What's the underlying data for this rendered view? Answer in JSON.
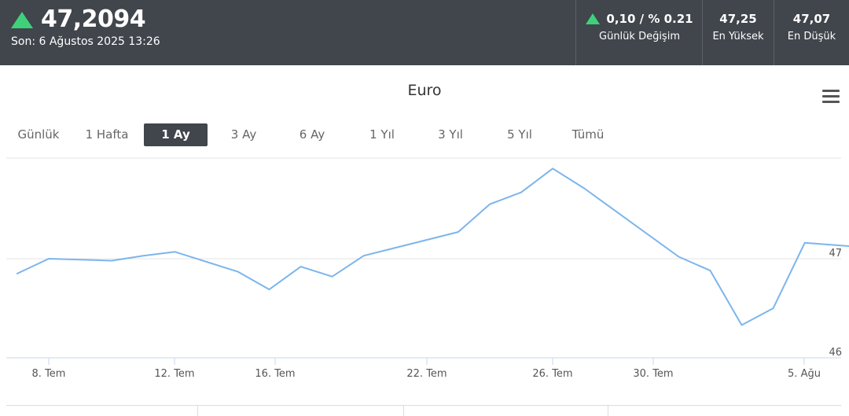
{
  "header": {
    "price": "47,2094",
    "last_update": "Son: 6 Ağustos 2025 13:26",
    "change_value": "0,10 / % 0.21",
    "change_label": "Günlük Değişim",
    "high_value": "47,25",
    "high_label": "En Yüksek",
    "low_value": "47,07",
    "low_label": "En Düşük",
    "up_color": "#3fd17a"
  },
  "chart_title": "Euro",
  "ranges": [
    "Günlük",
    "1 Hafta",
    "1 Ay",
    "3 Ay",
    "6 Ay",
    "1 Yıl",
    "3 Yıl",
    "5 Yıl",
    "Tümü"
  ],
  "active_range": "1 Ay",
  "chart_data": {
    "type": "line",
    "title": "Euro",
    "line_color": "#7cb5ec",
    "x_ticks": [
      "8. Tem",
      "12. Tem",
      "16. Tem",
      "22. Tem",
      "26. Tem",
      "30. Tem",
      "5. Ağu"
    ],
    "y_ticks": [
      "47",
      "46"
    ],
    "series": [
      {
        "values": [
          {
            "x": "2025-07-07",
            "y": 46.85
          },
          {
            "x": "2025-07-08",
            "y": 47.0
          },
          {
            "x": "2025-07-10",
            "y": 46.98
          },
          {
            "x": "2025-07-11",
            "y": 47.03
          },
          {
            "x": "2025-07-12",
            "y": 47.07
          },
          {
            "x": "2025-07-14",
            "y": 46.87
          },
          {
            "x": "2025-07-15",
            "y": 46.69
          },
          {
            "x": "2025-07-16",
            "y": 46.92
          },
          {
            "x": "2025-07-17",
            "y": 46.82
          },
          {
            "x": "2025-07-18",
            "y": 47.03
          },
          {
            "x": "2025-07-21",
            "y": 47.27
          },
          {
            "x": "2025-07-22",
            "y": 47.55
          },
          {
            "x": "2025-07-23",
            "y": 47.67
          },
          {
            "x": "2025-07-24",
            "y": 47.91
          },
          {
            "x": "2025-07-25",
            "y": 47.71
          },
          {
            "x": "2025-07-28",
            "y": 47.02
          },
          {
            "x": "2025-07-29",
            "y": 46.88
          },
          {
            "x": "2025-07-30",
            "y": 46.33
          },
          {
            "x": "2025-07-31",
            "y": 46.5
          },
          {
            "x": "2025-08-01",
            "y": 47.16
          },
          {
            "x": "2025-08-04",
            "y": 47.09
          },
          {
            "x": "2025-08-05",
            "y": 47.11
          },
          {
            "x": "2025-08-06",
            "y": 47.13
          }
        ]
      }
    ]
  }
}
